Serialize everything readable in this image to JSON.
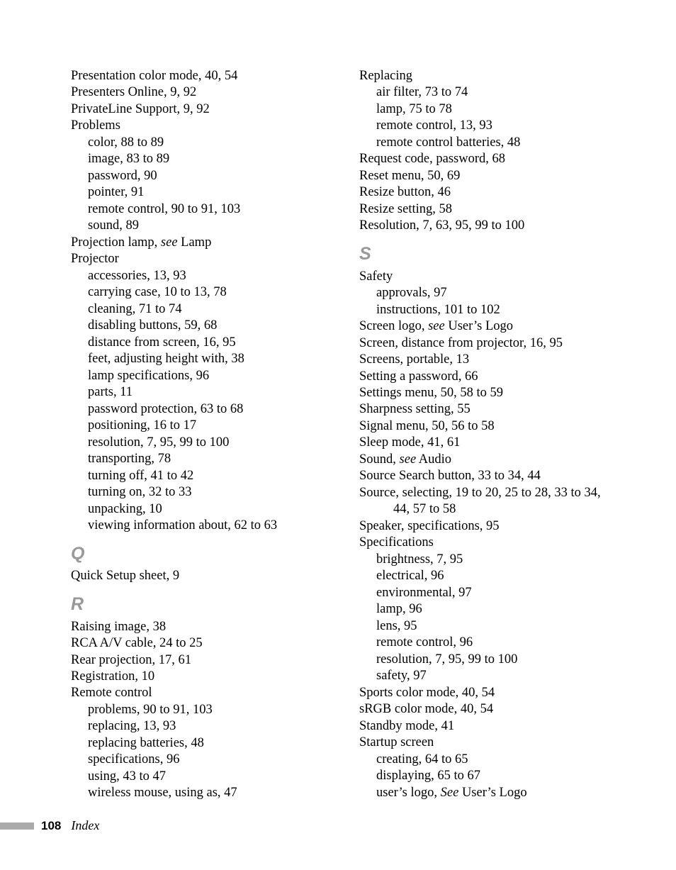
{
  "footer": {
    "page": "108",
    "label": "Index"
  },
  "left": [
    {
      "l": 0,
      "t": "Presentation color mode, 40, 54"
    },
    {
      "l": 0,
      "t": "Presenters Online, 9, 92"
    },
    {
      "l": 0,
      "t": "PrivateLine Support, 9, 92"
    },
    {
      "l": 0,
      "t": "Problems"
    },
    {
      "l": 1,
      "t": "color, 88 to 89"
    },
    {
      "l": 1,
      "t": "image, 83 to 89"
    },
    {
      "l": 1,
      "t": "password, 90"
    },
    {
      "l": 1,
      "t": "pointer, 91"
    },
    {
      "l": 1,
      "t": "remote control, 90 to 91, 103"
    },
    {
      "l": 1,
      "t": "sound, 89"
    },
    {
      "l": 0,
      "pre": "Projection lamp, ",
      "see": "see",
      "post": " Lamp"
    },
    {
      "l": 0,
      "t": "Projector"
    },
    {
      "l": 1,
      "t": "accessories, 13, 93"
    },
    {
      "l": 1,
      "t": "carrying case, 10 to 13, 78"
    },
    {
      "l": 1,
      "t": "cleaning, 71 to 74"
    },
    {
      "l": 1,
      "t": "disabling buttons, 59, 68"
    },
    {
      "l": 1,
      "t": "distance from screen, 16, 95"
    },
    {
      "l": 1,
      "t": "feet, adjusting height with, 38"
    },
    {
      "l": 1,
      "t": "lamp specifications, 96"
    },
    {
      "l": 1,
      "t": "parts, 11"
    },
    {
      "l": 1,
      "t": "password protection, 63 to 68"
    },
    {
      "l": 1,
      "t": "positioning, 16 to 17"
    },
    {
      "l": 1,
      "t": "resolution, 7, 95, 99 to 100"
    },
    {
      "l": 1,
      "t": "transporting, 78"
    },
    {
      "l": 1,
      "t": "turning off, 41 to 42"
    },
    {
      "l": 1,
      "t": "turning on, 32 to 33"
    },
    {
      "l": 1,
      "t": "unpacking, 10"
    },
    {
      "l": 1,
      "t": "viewing information about, 62 to 63"
    },
    {
      "letter": "Q"
    },
    {
      "l": 0,
      "t": "Quick Setup sheet, 9"
    },
    {
      "letter": "R"
    },
    {
      "l": 0,
      "t": "Raising image, 38"
    },
    {
      "l": 0,
      "t": "RCA A/V cable, 24 to 25"
    },
    {
      "l": 0,
      "t": "Rear projection, 17, 61"
    },
    {
      "l": 0,
      "t": "Registration, 10"
    },
    {
      "l": 0,
      "t": "Remote control"
    },
    {
      "l": 1,
      "t": "problems, 90 to 91, 103"
    },
    {
      "l": 1,
      "t": "replacing, 13, 93"
    },
    {
      "l": 1,
      "t": "replacing batteries, 48"
    },
    {
      "l": 1,
      "t": "specifications, 96"
    },
    {
      "l": 1,
      "t": "using, 43 to 47"
    },
    {
      "l": 1,
      "t": "wireless mouse, using as, 47"
    }
  ],
  "right": [
    {
      "l": 0,
      "t": "Replacing"
    },
    {
      "l": 1,
      "t": "air filter, 73 to 74"
    },
    {
      "l": 1,
      "t": "lamp, 75 to 78"
    },
    {
      "l": 1,
      "t": "remote control, 13, 93"
    },
    {
      "l": 1,
      "t": "remote control batteries, 48"
    },
    {
      "l": 0,
      "t": "Request code, password, 68"
    },
    {
      "l": 0,
      "t": "Reset menu, 50, 69"
    },
    {
      "l": 0,
      "t": "Resize button, 46"
    },
    {
      "l": 0,
      "t": "Resize setting, 58"
    },
    {
      "l": 0,
      "t": "Resolution, 7, 63, 95, 99 to 100"
    },
    {
      "letter": "S"
    },
    {
      "l": 0,
      "t": "Safety"
    },
    {
      "l": 1,
      "t": "approvals, 97"
    },
    {
      "l": 1,
      "t": "instructions, 101 to 102"
    },
    {
      "l": 0,
      "pre": "Screen logo, ",
      "see": "see",
      "post": " User’s Logo"
    },
    {
      "l": 0,
      "t": "Screen, distance from projector, 16, 95"
    },
    {
      "l": 0,
      "t": "Screens, portable, 13"
    },
    {
      "l": 0,
      "t": "Setting a password, 66"
    },
    {
      "l": 0,
      "t": "Settings menu, 50, 58 to 59"
    },
    {
      "l": 0,
      "t": "Sharpness setting, 55"
    },
    {
      "l": 0,
      "t": "Signal menu, 50, 56 to 58"
    },
    {
      "l": 0,
      "t": "Sleep mode, 41, 61"
    },
    {
      "l": 0,
      "pre": "Sound, ",
      "see": "see",
      "post": " Audio"
    },
    {
      "l": 0,
      "t": "Source Search button, 33 to 34, 44"
    },
    {
      "l": 0,
      "t": "Source, selecting, 19 to 20, 25 to 28, 33 to 34, "
    },
    {
      "l": 2,
      "t": "44, 57 to 58"
    },
    {
      "l": 0,
      "t": "Speaker, specifications, 95"
    },
    {
      "l": 0,
      "t": "Specifications"
    },
    {
      "l": 1,
      "t": "brightness, 7, 95"
    },
    {
      "l": 1,
      "t": "electrical, 96"
    },
    {
      "l": 1,
      "t": "environmental, 97"
    },
    {
      "l": 1,
      "t": "lamp, 96"
    },
    {
      "l": 1,
      "t": "lens, 95"
    },
    {
      "l": 1,
      "t": "remote control, 96"
    },
    {
      "l": 1,
      "t": "resolution, 7, 95, 99 to 100"
    },
    {
      "l": 1,
      "t": "safety, 97"
    },
    {
      "l": 0,
      "t": "Sports color mode, 40, 54"
    },
    {
      "l": 0,
      "t": "sRGB color mode, 40, 54"
    },
    {
      "l": 0,
      "t": "Standby mode, 41"
    },
    {
      "l": 0,
      "t": "Startup screen"
    },
    {
      "l": 1,
      "t": "creating, 64 to 65"
    },
    {
      "l": 1,
      "t": "displaying, 65 to 67"
    },
    {
      "l": 1,
      "pre": "user’s logo, ",
      "see": "See",
      "post": " User’s Logo"
    }
  ]
}
